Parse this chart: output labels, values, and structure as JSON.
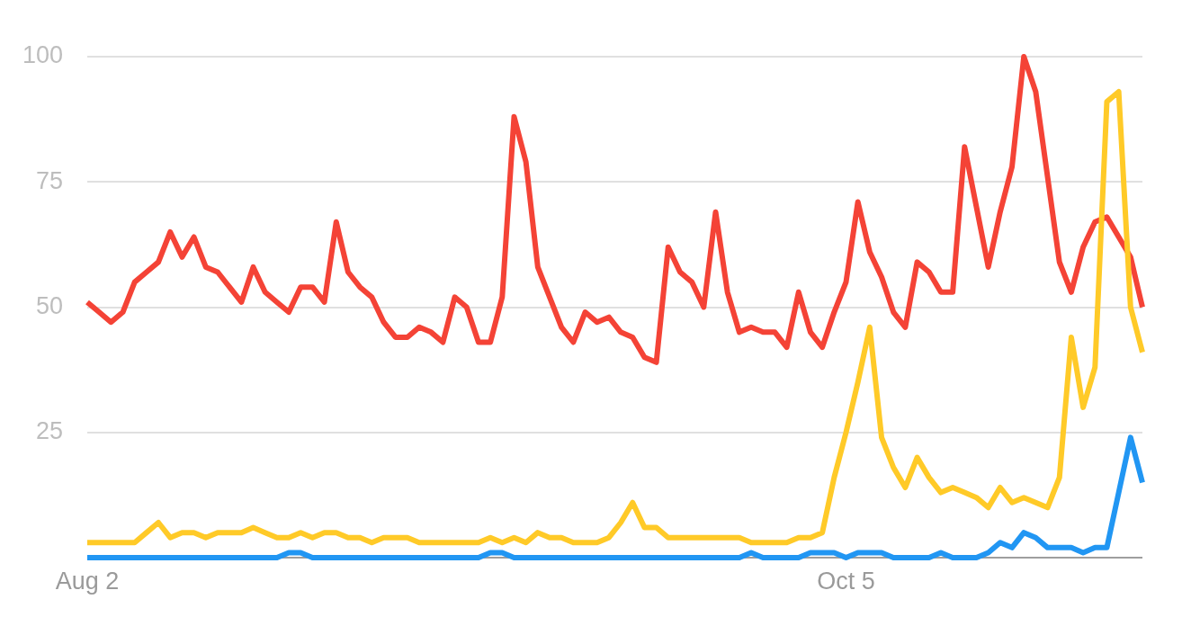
{
  "chart_data": {
    "type": "line",
    "x": [
      "--08-02",
      "--08-03",
      "--08-04",
      "--08-05",
      "--08-06",
      "--08-07",
      "--08-08",
      "--08-09",
      "--08-10",
      "--08-11",
      "--08-12",
      "--08-13",
      "--08-14",
      "--08-15",
      "--08-16",
      "--08-17",
      "--08-18",
      "--08-19",
      "--08-20",
      "--08-21",
      "--08-22",
      "--08-23",
      "--08-24",
      "--08-25",
      "--08-26",
      "--08-27",
      "--08-28",
      "--08-29",
      "--08-30",
      "--08-31",
      "--09-01",
      "--09-02",
      "--09-03",
      "--09-04",
      "--09-05",
      "--09-06",
      "--09-07",
      "--09-08",
      "--09-09",
      "--09-10",
      "--09-11",
      "--09-12",
      "--09-13",
      "--09-14",
      "--09-15",
      "--09-16",
      "--09-17",
      "--09-18",
      "--09-19",
      "--09-20",
      "--09-21",
      "--09-22",
      "--09-23",
      "--09-24",
      "--09-25",
      "--09-26",
      "--09-27",
      "--09-28",
      "--09-29",
      "--09-30",
      "--10-01",
      "--10-02",
      "--10-03",
      "--10-04",
      "--10-05",
      "--10-06",
      "--10-07",
      "--10-08",
      "--10-09",
      "--10-10",
      "--10-11",
      "--10-12",
      "--10-13",
      "--10-14",
      "--10-15",
      "--10-16",
      "--10-17",
      "--10-18",
      "--10-19",
      "--10-20",
      "--10-21",
      "--10-22",
      "--10-23",
      "--10-24",
      "--10-25",
      "--10-26",
      "--10-27",
      "--10-28",
      "--10-29",
      "--10-30"
    ],
    "xlim": [
      "--08-02",
      "--10-30"
    ],
    "xticks": [
      {
        "value": "--08-02",
        "label": "Aug 2"
      },
      {
        "value": "--10-05",
        "label": "Oct 5"
      }
    ],
    "ylim": [
      0,
      100
    ],
    "yticks": [
      {
        "value": 0,
        "label": null
      },
      25,
      50,
      75,
      100
    ],
    "grid": "y",
    "marker": "none",
    "line_style": "solid",
    "series": [
      {
        "color": "#2196f3",
        "values": [
          0,
          0,
          0,
          0,
          0,
          0,
          0,
          0,
          0,
          0,
          0,
          0,
          0,
          0,
          0,
          0,
          0,
          1,
          1,
          0,
          0,
          0,
          0,
          0,
          0,
          0,
          0,
          0,
          0,
          0,
          0,
          0,
          0,
          0,
          1,
          1,
          0,
          0,
          0,
          0,
          0,
          0,
          0,
          0,
          0,
          0,
          0,
          0,
          0,
          0,
          0,
          0,
          0,
          0,
          0,
          0,
          1,
          0,
          0,
          0,
          0,
          1,
          1,
          1,
          0,
          1,
          1,
          1,
          0,
          0,
          0,
          0,
          1,
          0,
          0,
          0,
          1,
          3,
          2,
          5,
          4,
          2,
          2,
          2,
          1,
          2,
          2,
          13,
          24,
          15
        ]
      },
      {
        "color": "#ffca28",
        "values": [
          3,
          3,
          3,
          3,
          3,
          5,
          7,
          4,
          5,
          5,
          4,
          5,
          5,
          5,
          6,
          5,
          4,
          4,
          5,
          4,
          5,
          5,
          4,
          4,
          3,
          4,
          4,
          4,
          3,
          3,
          3,
          3,
          3,
          3,
          4,
          3,
          4,
          3,
          5,
          4,
          4,
          3,
          3,
          3,
          4,
          7,
          11,
          6,
          6,
          4,
          4,
          4,
          4,
          4,
          4,
          4,
          3,
          3,
          3,
          3,
          4,
          4,
          5,
          16,
          25,
          35,
          46,
          24,
          18,
          14,
          20,
          16,
          13,
          14,
          13,
          12,
          10,
          14,
          11,
          12,
          11,
          10,
          16,
          44,
          30,
          38,
          91,
          93,
          50,
          41
        ]
      },
      {
        "color": "#f44336",
        "values": [
          51,
          49,
          47,
          49,
          55,
          57,
          59,
          65,
          60,
          64,
          58,
          57,
          54,
          51,
          58,
          53,
          51,
          49,
          54,
          54,
          51,
          67,
          57,
          54,
          52,
          47,
          44,
          44,
          46,
          45,
          43,
          52,
          50,
          43,
          43,
          52,
          88,
          79,
          58,
          52,
          46,
          43,
          49,
          47,
          48,
          45,
          44,
          40,
          39,
          62,
          57,
          55,
          50,
          69,
          53,
          45,
          46,
          45,
          45,
          42,
          53,
          45,
          42,
          49,
          55,
          71,
          61,
          56,
          49,
          46,
          59,
          57,
          53,
          53,
          82,
          70,
          58,
          69,
          78,
          100,
          93,
          76,
          59,
          53,
          62,
          67,
          68,
          64,
          60,
          50
        ]
      }
    ]
  }
}
